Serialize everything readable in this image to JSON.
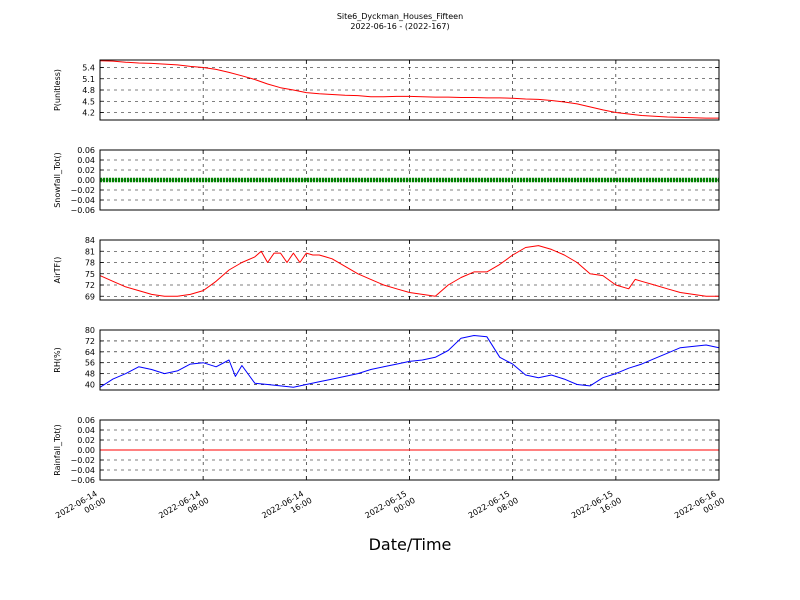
{
  "title": "Site6_Dyckman_Houses_Fifteen",
  "subtitle": "2022-06-16 - (2022-167)",
  "xlabel": "Date/Time",
  "x_ticks": [
    [
      "2022-06-14",
      "00:00"
    ],
    [
      "2022-06-14",
      "08:00"
    ],
    [
      "2022-06-14",
      "16:00"
    ],
    [
      "2022-06-15",
      "00:00"
    ],
    [
      "2022-06-15",
      "08:00"
    ],
    [
      "2022-06-15",
      "16:00"
    ],
    [
      "2022-06-16",
      "00:00"
    ]
  ],
  "colors": {
    "red": "#ff0000",
    "green": "#008000",
    "blue": "#0000ff"
  },
  "chart_data": [
    {
      "type": "line",
      "ylabel": "P(unitless)",
      "xlim": [
        0,
        48
      ],
      "ylim": [
        4.0,
        5.6
      ],
      "yticks": [
        4.2,
        4.5,
        4.8,
        5.1,
        5.4
      ],
      "ytick_labels": [
        "4.2",
        "4.5",
        "4.8",
        "5.1",
        "5.4"
      ],
      "grid": true,
      "series": [
        {
          "color": "red",
          "x": [
            0,
            1,
            2,
            3,
            4,
            5,
            6,
            7,
            8,
            9,
            10,
            11,
            12,
            13,
            14,
            15,
            16,
            17,
            18,
            19,
            20,
            21,
            22,
            23,
            24,
            25,
            26,
            27,
            28,
            29,
            30,
            31,
            32,
            33,
            34,
            35,
            36,
            37,
            38,
            39,
            40,
            41,
            42,
            43,
            44,
            45,
            46,
            47,
            48
          ],
          "values": [
            5.58,
            5.57,
            5.54,
            5.52,
            5.51,
            5.49,
            5.47,
            5.43,
            5.4,
            5.35,
            5.27,
            5.18,
            5.08,
            4.96,
            4.86,
            4.8,
            4.73,
            4.7,
            4.68,
            4.66,
            4.65,
            4.62,
            4.62,
            4.63,
            4.63,
            4.62,
            4.61,
            4.61,
            4.6,
            4.6,
            4.59,
            4.59,
            4.58,
            4.56,
            4.55,
            4.52,
            4.48,
            4.43,
            4.35,
            4.27,
            4.2,
            4.16,
            4.12,
            4.1,
            4.08,
            4.07,
            4.06,
            4.05,
            4.05
          ]
        }
      ]
    },
    {
      "type": "line",
      "ylabel": "Snowfall_Tot()",
      "xlim": [
        0,
        48
      ],
      "ylim": [
        -0.06,
        0.06
      ],
      "yticks": [
        -0.06,
        -0.04,
        -0.02,
        0.0,
        0.02,
        0.04,
        0.06
      ],
      "ytick_labels": [
        "−0.06",
        "−0.04",
        "−0.02",
        "0.00",
        "0.02",
        "0.04",
        "0.06"
      ],
      "grid": true,
      "series": [
        {
          "color": "green",
          "marker": "dot",
          "x": [
            0,
            48
          ],
          "values": [
            0,
            0
          ]
        }
      ]
    },
    {
      "type": "line",
      "ylabel": "AirTF()",
      "xlim": [
        0,
        48
      ],
      "ylim": [
        68,
        84
      ],
      "yticks": [
        69,
        72,
        75,
        78,
        81,
        84
      ],
      "ytick_labels": [
        "69",
        "72",
        "75",
        "78",
        "81",
        "84"
      ],
      "grid": true,
      "series": [
        {
          "color": "red",
          "x": [
            0,
            1,
            2,
            3,
            4,
            5,
            6,
            7,
            8,
            9,
            10,
            11,
            12,
            12.5,
            13,
            13.5,
            14,
            14.5,
            15,
            15.5,
            16,
            16.5,
            17,
            17.5,
            18,
            19,
            20,
            21,
            22,
            23,
            24,
            25,
            26,
            27,
            28,
            29,
            30,
            31,
            32,
            33,
            34,
            35,
            36,
            37,
            38,
            39,
            40,
            41,
            41.5,
            42,
            43,
            44,
            45,
            46,
            47,
            48
          ],
          "values": [
            74.5,
            73.0,
            71.5,
            70.5,
            69.5,
            69.0,
            69.0,
            69.5,
            70.5,
            73.0,
            76.0,
            78.0,
            79.5,
            81.0,
            78.0,
            80.5,
            80.5,
            78.0,
            80.5,
            78.0,
            80.5,
            80.0,
            80.0,
            79.5,
            79.0,
            77.0,
            75.0,
            73.5,
            72.0,
            71.0,
            70.0,
            69.5,
            69.0,
            72.0,
            74.0,
            75.5,
            75.5,
            77.5,
            80.0,
            82.0,
            82.5,
            81.5,
            80.0,
            78.0,
            75.0,
            74.5,
            72.0,
            71.0,
            73.5,
            73.0,
            72.0,
            71.0,
            70.0,
            69.5,
            69.0,
            69.0
          ]
        }
      ]
    },
    {
      "type": "line",
      "ylabel": "RH(%)",
      "xlim": [
        0,
        48
      ],
      "ylim": [
        36,
        80
      ],
      "yticks": [
        40,
        48,
        56,
        64,
        72,
        80
      ],
      "ytick_labels": [
        "40",
        "48",
        "56",
        "64",
        "72",
        "80"
      ],
      "grid": true,
      "series": [
        {
          "color": "blue",
          "x": [
            0,
            1,
            2,
            3,
            4,
            5,
            6,
            7,
            8,
            9,
            10,
            10.5,
            11,
            12,
            13,
            14,
            15,
            16,
            17,
            18,
            19,
            20,
            21,
            22,
            23,
            24,
            25,
            26,
            27,
            28,
            29,
            30,
            31,
            32,
            33,
            34,
            35,
            36,
            37,
            38,
            39,
            40,
            41,
            42,
            43,
            44,
            45,
            46,
            47,
            48
          ],
          "values": [
            38.0,
            44.0,
            48.0,
            53.0,
            51.0,
            48.0,
            50.0,
            55.0,
            56.0,
            53.0,
            58.0,
            46.0,
            54.0,
            41.0,
            40.0,
            39.0,
            38.0,
            40.0,
            42.0,
            44.0,
            46.0,
            48.0,
            51.0,
            53.0,
            55.0,
            57.0,
            58.0,
            60.0,
            65.0,
            74.0,
            76.0,
            75.0,
            60.0,
            55.0,
            47.0,
            45.0,
            47.0,
            44.0,
            40.0,
            39.0,
            45.0,
            48.0,
            52.0,
            55.0,
            59.0,
            63.0,
            67.0,
            68.0,
            69.0,
            67.0
          ]
        }
      ]
    },
    {
      "type": "line",
      "ylabel": "Rainfall_Tot()",
      "xlim": [
        0,
        48
      ],
      "ylim": [
        -0.06,
        0.06
      ],
      "yticks": [
        -0.06,
        -0.04,
        -0.02,
        0.0,
        0.02,
        0.04,
        0.06
      ],
      "ytick_labels": [
        "−0.06",
        "−0.04",
        "−0.02",
        "0.00",
        "0.02",
        "0.04",
        "0.06"
      ],
      "grid": true,
      "series": [
        {
          "color": "red",
          "x": [
            0,
            48
          ],
          "values": [
            0,
            0
          ]
        }
      ]
    }
  ]
}
